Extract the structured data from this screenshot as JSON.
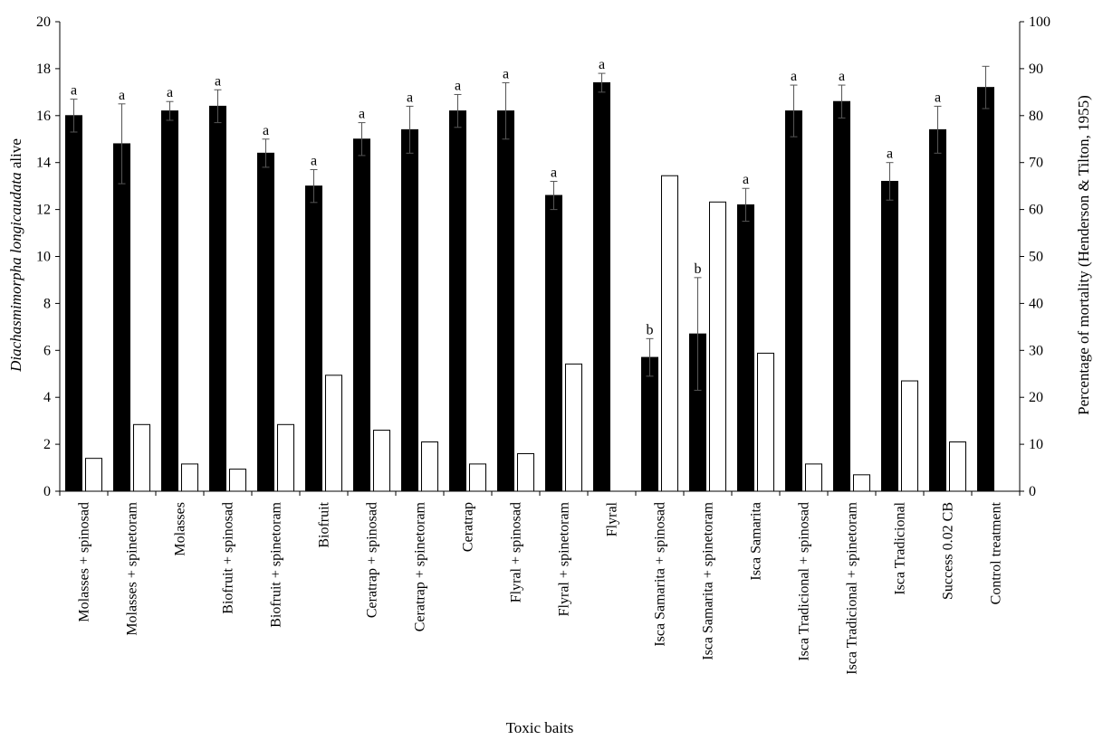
{
  "chart_data": {
    "type": "bar",
    "xlabel": "Toxic baits",
    "ylabel_italic": "Diachasmimorpha longicaudata",
    "ylabel_rest": " alive",
    "y2label": "Percentage of mortality (Henderson & Tilton, 1955)",
    "ylim": [
      0,
      20
    ],
    "y2lim": [
      0,
      100
    ],
    "yticks": [
      "0",
      "2",
      "4",
      "6",
      "8",
      "10",
      "12",
      "14",
      "16",
      "18",
      "20"
    ],
    "y2ticks": [
      "0",
      "10",
      "20",
      "30",
      "40",
      "50",
      "60",
      "70",
      "80",
      "90",
      "100"
    ],
    "categories": [
      "Molasses + spinosad",
      "Molasses + spinetoram",
      "Molasses",
      "Biofruit + spinosad",
      "Biofruit + spinetoram",
      "Biofruit",
      "Ceratrap + spinosad",
      "Ceratrap + spinetoram",
      "Ceratrap",
      "Flyral + spinosad",
      "Flyral + spinetoram",
      "Flyral",
      "Isca Samarita + spinosad",
      "Isca Samarita + spinetoram",
      "Isca Samarita",
      "Isca Tradicional + spinosad",
      "Isca Tradicional + spinetoram",
      "Isca Tradicional",
      "Success 0.02 CB",
      "Control treatment"
    ],
    "series": [
      {
        "axis": "left",
        "color": "#000000",
        "values": [
          16.0,
          14.8,
          16.2,
          16.4,
          14.4,
          13.0,
          15.0,
          15.4,
          16.2,
          16.2,
          12.6,
          17.4,
          5.7,
          6.7,
          12.2,
          16.2,
          16.6,
          13.2,
          15.4,
          17.2
        ],
        "errors": [
          0.7,
          1.7,
          0.4,
          0.7,
          0.6,
          0.7,
          0.7,
          1.0,
          0.7,
          1.2,
          0.6,
          0.4,
          0.8,
          2.4,
          0.7,
          1.1,
          0.7,
          0.8,
          1.0,
          0.9
        ],
        "letters": [
          "a",
          "a",
          "a",
          "a",
          "a",
          "a",
          "a",
          "a",
          "a",
          "a",
          "a",
          "a",
          "b",
          "b",
          "a",
          "a",
          "a",
          "a",
          "a",
          ""
        ]
      },
      {
        "axis": "right",
        "color": "#ffffff",
        "values": [
          7,
          14.2,
          5.8,
          4.7,
          14.2,
          24.7,
          13,
          10.5,
          5.8,
          8,
          27.1,
          0,
          67.2,
          61.6,
          29.4,
          5.8,
          3.5,
          23.5,
          10.5,
          0
        ]
      }
    ],
    "grid": false,
    "legend": "none"
  }
}
